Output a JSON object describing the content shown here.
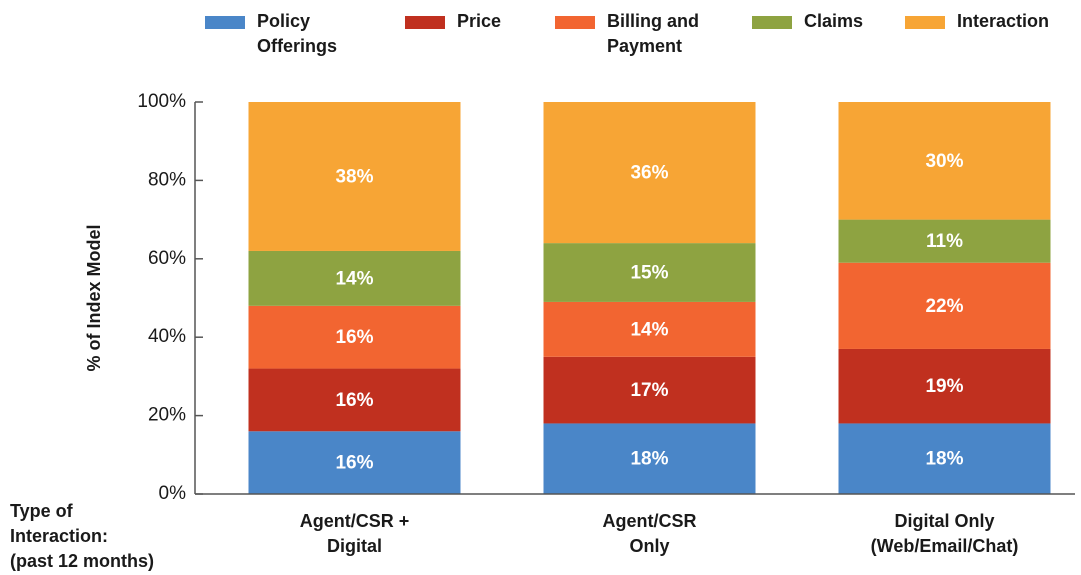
{
  "chart_data": {
    "type": "stacked_bar",
    "y_label": "% of Index Model",
    "x_label": "Type of\nInteraction:\n(past 12 months)",
    "categories": [
      "Agent/CSR +\nDigital",
      "Agent/CSR\nOnly",
      "Digital Only\n(Web/Email/Chat)"
    ],
    "series": [
      {
        "name": "Policy\nOfferings",
        "color": "#4a86c8",
        "values": [
          16,
          18,
          18
        ],
        "value_labels": [
          "16%",
          "18%",
          "18%"
        ]
      },
      {
        "name": "Price",
        "color": "#c0301f",
        "values": [
          16,
          17,
          19
        ],
        "value_labels": [
          "16%",
          "17%",
          "19%"
        ]
      },
      {
        "name": "Billing and\nPayment",
        "color": "#f26531",
        "values": [
          16,
          14,
          22
        ],
        "value_labels": [
          "16%",
          "14%",
          "22%"
        ]
      },
      {
        "name": "Claims",
        "color": "#8ea341",
        "values": [
          14,
          15,
          11
        ],
        "value_labels": [
          "14%",
          "15%",
          "11%"
        ]
      },
      {
        "name": "Interaction",
        "color": "#f7a535",
        "values": [
          38,
          36,
          30
        ],
        "value_labels": [
          "38%",
          "36%",
          "30%"
        ]
      }
    ],
    "ylim": [
      0,
      100
    ],
    "yticks": [
      {
        "value": 0,
        "label": "0%"
      },
      {
        "value": 20,
        "label": "20%"
      },
      {
        "value": 40,
        "label": "40%"
      },
      {
        "value": 60,
        "label": "60%"
      },
      {
        "value": 80,
        "label": "80%"
      },
      {
        "value": 100,
        "label": "100%"
      }
    ],
    "legend": "top"
  }
}
